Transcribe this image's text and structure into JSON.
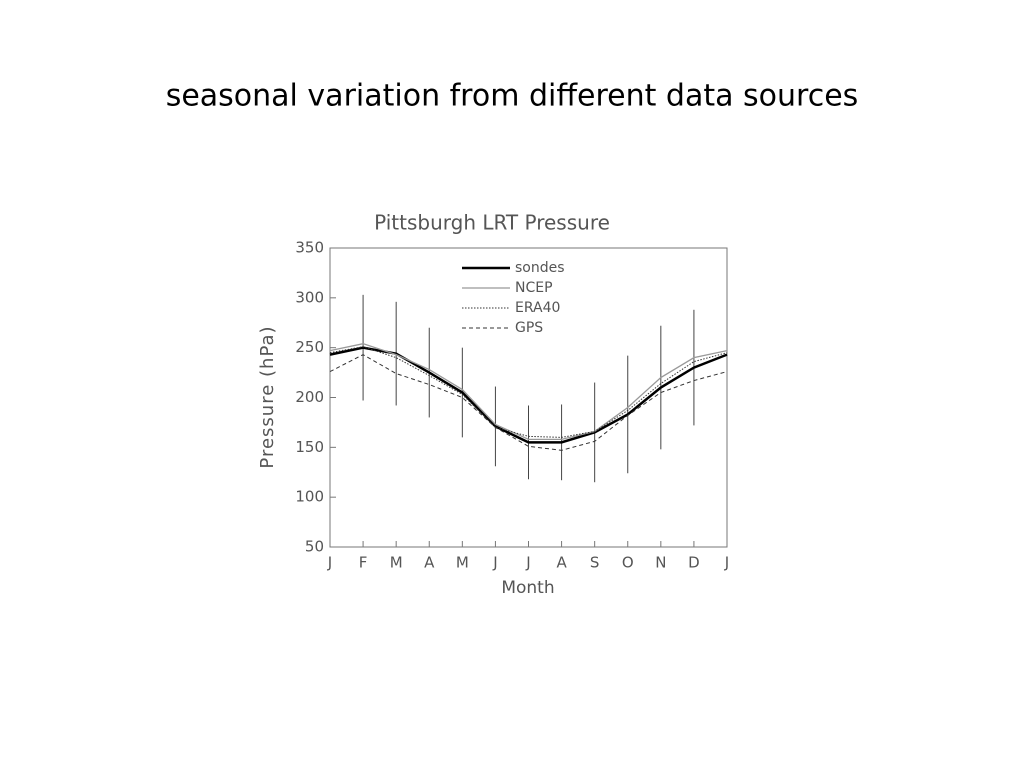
{
  "slide_title": "seasonal variation from different data sources",
  "chart_data": {
    "type": "line",
    "title": "Pittsburgh  LRT Pressure",
    "x_label": "Month",
    "y_label": "Pressure (hPa)",
    "categories": [
      "J",
      "F",
      "M",
      "A",
      "M",
      "J",
      "J",
      "A",
      "S",
      "O",
      "N",
      "D",
      "J"
    ],
    "ylim": [
      50,
      350
    ],
    "yticks": [
      50,
      100,
      150,
      200,
      250,
      300,
      350
    ],
    "grid": false,
    "series": [
      {
        "name": "sondes",
        "color": "#000000",
        "width": 2.5,
        "style": "solid",
        "values": [
          243,
          250,
          244,
          225,
          205,
          171,
          155,
          155,
          165,
          183,
          210,
          230,
          243
        ],
        "errors": [
          null,
          53,
          52,
          45,
          45,
          40,
          37,
          38,
          50,
          59,
          62,
          58,
          null
        ]
      },
      {
        "name": "NCEP",
        "color": "#999999",
        "width": 1.3,
        "style": "solid",
        "values": [
          247,
          254,
          243,
          228,
          208,
          173,
          158,
          158,
          166,
          190,
          220,
          240,
          247
        ]
      },
      {
        "name": "ERA40",
        "color": "#333333",
        "width": 1,
        "style": "dotted",
        "values": [
          245,
          251,
          240,
          222,
          203,
          170,
          161,
          160,
          166,
          187,
          214,
          236,
          245
        ]
      },
      {
        "name": "GPS",
        "color": "#333333",
        "width": 1,
        "style": "dashed",
        "values": [
          226,
          243,
          224,
          213,
          200,
          170,
          151,
          147,
          156,
          182,
          205,
          217,
          226
        ]
      }
    ]
  }
}
